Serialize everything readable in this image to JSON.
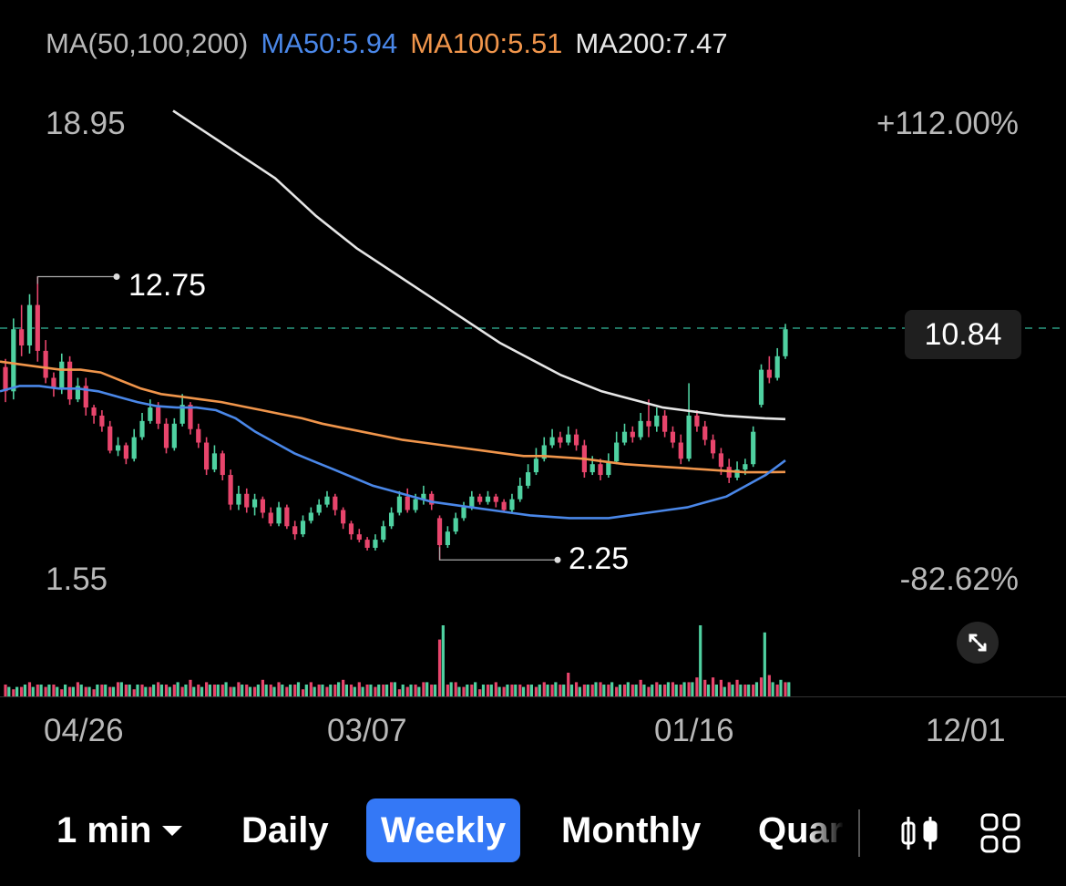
{
  "legend": {
    "title": "MA(50,100,200)",
    "ma50": "MA50:5.94",
    "ma100": "MA100:5.51",
    "ma200": "MA200:7.47"
  },
  "colors": {
    "ma50": "#4a87e8",
    "ma100": "#f0954b",
    "ma200": "#e6e6e6",
    "up": "#4fd1a1",
    "down": "#e8456c",
    "selected_tab": "#3478f6",
    "price_line": "#2a9a82"
  },
  "axis": {
    "max_price": "18.95",
    "min_price": "1.55",
    "max_pct": "+112.00%",
    "min_pct": "-82.62%",
    "x_ticks": [
      "04/26",
      "03/07",
      "01/16",
      "12/01"
    ]
  },
  "current_price": "10.84",
  "annotations": {
    "high": "12.75",
    "low": "2.25"
  },
  "chart_data": {
    "type": "candlestick",
    "interval": "Weekly",
    "ylim": [
      1.55,
      18.95
    ],
    "last_price": 10.84,
    "high_label": 12.75,
    "low_label": 2.25,
    "ma_last": {
      "MA50": 5.94,
      "MA100": 5.51,
      "MA200": 7.47
    },
    "ma200": [
      18.9,
      18.4,
      17.9,
      17.4,
      16.9,
      16.4,
      15.7,
      15.0,
      14.4,
      13.8,
      13.3,
      12.8,
      12.3,
      11.8,
      11.3,
      10.8,
      10.3,
      9.9,
      9.5,
      9.1,
      8.8,
      8.5,
      8.3,
      8.1,
      7.9,
      7.8,
      7.7,
      7.6,
      7.55,
      7.5,
      7.47
    ],
    "ma100": [
      9.6,
      9.5,
      9.4,
      9.3,
      9.3,
      9.2,
      8.9,
      8.6,
      8.4,
      8.3,
      8.2,
      8.1,
      7.95,
      7.8,
      7.65,
      7.5,
      7.3,
      7.15,
      7.0,
      6.85,
      6.7,
      6.6,
      6.5,
      6.4,
      6.3,
      6.2,
      6.1,
      6.1,
      6.05,
      6.0,
      5.9,
      5.8,
      5.75,
      5.7,
      5.65,
      5.6,
      5.55,
      5.5,
      5.5,
      5.51
    ],
    "ma50": [
      8.5,
      8.7,
      8.7,
      8.6,
      8.6,
      8.5,
      8.3,
      8.1,
      7.95,
      7.9,
      7.9,
      7.8,
      7.5,
      7.0,
      6.6,
      6.2,
      5.9,
      5.6,
      5.3,
      5.0,
      4.8,
      4.6,
      4.4,
      4.3,
      4.2,
      4.1,
      4.0,
      3.9,
      3.85,
      3.8,
      3.8,
      3.8,
      3.9,
      4.0,
      4.1,
      4.2,
      4.4,
      4.6,
      5.0,
      5.4,
      5.94
    ],
    "candles": [
      [
        9.4,
        8.5,
        9.7,
        8.1
      ],
      [
        8.5,
        10.8,
        11.2,
        8.2
      ],
      [
        10.8,
        10.2,
        11.7,
        9.8
      ],
      [
        10.2,
        11.7,
        12.1,
        9.9
      ],
      [
        11.7,
        10.0,
        12.75,
        9.6
      ],
      [
        10.0,
        9.0,
        10.4,
        8.8
      ],
      [
        9.0,
        8.6,
        9.2,
        8.3
      ],
      [
        8.6,
        9.6,
        9.9,
        8.4
      ],
      [
        9.6,
        8.2,
        9.8,
        8.0
      ],
      [
        8.2,
        8.7,
        9.0,
        8.1
      ],
      [
        8.7,
        7.9,
        9.0,
        7.6
      ],
      [
        7.9,
        7.6,
        8.0,
        7.3
      ],
      [
        7.6,
        7.2,
        7.8,
        7.0
      ],
      [
        7.2,
        6.3,
        7.4,
        6.2
      ],
      [
        6.3,
        6.5,
        6.8,
        6.1
      ],
      [
        6.5,
        6.0,
        6.6,
        5.8
      ],
      [
        6.0,
        6.8,
        7.1,
        5.9
      ],
      [
        6.8,
        7.4,
        7.7,
        6.7
      ],
      [
        7.4,
        7.9,
        8.2,
        7.3
      ],
      [
        7.9,
        7.3,
        8.1,
        7.1
      ],
      [
        7.3,
        6.4,
        7.5,
        6.2
      ],
      [
        6.4,
        7.3,
        7.5,
        6.3
      ],
      [
        7.3,
        8.0,
        8.4,
        7.2
      ],
      [
        8.0,
        7.1,
        8.1,
        6.9
      ],
      [
        7.1,
        6.6,
        7.3,
        6.4
      ],
      [
        6.6,
        5.6,
        6.8,
        5.4
      ],
      [
        5.6,
        6.2,
        6.5,
        5.5
      ],
      [
        6.2,
        5.4,
        6.3,
        5.2
      ],
      [
        5.4,
        4.3,
        5.6,
        4.1
      ],
      [
        4.3,
        4.7,
        5.0,
        4.1
      ],
      [
        4.7,
        4.2,
        4.9,
        4.0
      ],
      [
        4.2,
        4.5,
        4.7,
        3.9
      ],
      [
        4.5,
        4.0,
        4.6,
        3.8
      ],
      [
        4.0,
        3.6,
        4.2,
        3.5
      ],
      [
        3.6,
        4.2,
        4.4,
        3.5
      ],
      [
        4.2,
        3.5,
        4.3,
        3.4
      ],
      [
        3.5,
        3.2,
        3.7,
        3.0
      ],
      [
        3.2,
        3.7,
        3.9,
        3.1
      ],
      [
        3.7,
        4.0,
        4.2,
        3.6
      ],
      [
        4.0,
        4.3,
        4.5,
        3.9
      ],
      [
        4.3,
        4.6,
        4.8,
        4.2
      ],
      [
        4.6,
        4.1,
        4.7,
        3.9
      ],
      [
        4.1,
        3.6,
        4.2,
        3.4
      ],
      [
        3.6,
        3.2,
        3.7,
        3.0
      ],
      [
        3.2,
        3.0,
        3.4,
        2.9
      ],
      [
        3.0,
        2.7,
        3.1,
        2.6
      ],
      [
        2.7,
        3.0,
        3.2,
        2.6
      ],
      [
        3.0,
        3.5,
        3.7,
        2.9
      ],
      [
        3.5,
        4.0,
        4.2,
        3.4
      ],
      [
        4.0,
        4.6,
        4.8,
        3.9
      ],
      [
        4.6,
        4.1,
        4.9,
        4.0
      ],
      [
        4.1,
        4.5,
        4.7,
        4.0
      ],
      [
        4.5,
        4.7,
        5.0,
        4.3
      ],
      [
        4.7,
        4.3,
        4.8,
        4.1
      ],
      [
        3.8,
        2.8,
        3.9,
        2.25
      ],
      [
        2.8,
        3.3,
        3.5,
        2.7
      ],
      [
        3.3,
        3.8,
        4.0,
        3.2
      ],
      [
        3.8,
        4.2,
        4.4,
        3.7
      ],
      [
        4.2,
        4.6,
        4.8,
        4.1
      ],
      [
        4.6,
        4.4,
        4.7,
        4.3
      ],
      [
        4.4,
        4.6,
        4.8,
        4.3
      ],
      [
        4.6,
        4.4,
        4.7,
        4.2
      ],
      [
        4.4,
        4.1,
        4.5,
        4.0
      ],
      [
        4.1,
        4.5,
        4.7,
        4.0
      ],
      [
        4.5,
        5.0,
        5.3,
        4.4
      ],
      [
        5.0,
        5.5,
        5.8,
        4.9
      ],
      [
        5.5,
        6.0,
        6.4,
        5.4
      ],
      [
        6.0,
        6.5,
        6.8,
        5.9
      ],
      [
        6.5,
        6.8,
        7.1,
        6.4
      ],
      [
        6.8,
        6.6,
        7.0,
        6.4
      ],
      [
        6.6,
        6.9,
        7.2,
        6.5
      ],
      [
        6.9,
        6.5,
        7.1,
        6.3
      ],
      [
        6.5,
        5.5,
        6.7,
        5.3
      ],
      [
        5.5,
        5.8,
        6.1,
        5.4
      ],
      [
        5.8,
        5.4,
        6.0,
        5.2
      ],
      [
        5.4,
        5.9,
        6.2,
        5.3
      ],
      [
        5.9,
        6.6,
        7.0,
        5.8
      ],
      [
        6.6,
        7.0,
        7.3,
        6.5
      ],
      [
        7.0,
        6.8,
        7.2,
        6.6
      ],
      [
        6.8,
        7.4,
        7.7,
        6.7
      ],
      [
        7.4,
        7.2,
        8.2,
        6.8
      ],
      [
        7.2,
        7.6,
        7.9,
        7.0
      ],
      [
        7.6,
        7.0,
        7.8,
        6.8
      ],
      [
        7.0,
        6.6,
        7.2,
        6.4
      ],
      [
        6.6,
        6.0,
        6.9,
        5.8
      ],
      [
        6.0,
        7.6,
        8.8,
        5.9
      ],
      [
        7.6,
        7.2,
        7.8,
        7.0
      ],
      [
        7.2,
        6.7,
        7.4,
        6.5
      ],
      [
        6.7,
        6.2,
        6.9,
        6.0
      ],
      [
        6.2,
        5.7,
        6.4,
        5.4
      ],
      [
        5.7,
        5.3,
        6.0,
        5.1
      ],
      [
        5.3,
        5.6,
        5.9,
        5.2
      ],
      [
        5.6,
        5.8,
        6.0,
        5.4
      ],
      [
        5.8,
        7.0,
        7.2,
        5.7
      ],
      [
        8.0,
        9.3,
        9.5,
        7.9
      ],
      [
        9.3,
        9.0,
        9.8,
        8.8
      ],
      [
        9.0,
        9.8,
        10.1,
        8.9
      ],
      [
        9.8,
        10.8,
        11.0,
        9.7
      ]
    ],
    "volume_up": [
      4,
      4,
      5,
      4,
      5,
      5,
      4,
      5,
      4,
      5,
      4,
      5,
      5,
      4,
      6,
      5,
      5,
      4,
      5,
      5,
      4,
      6,
      5,
      4,
      4,
      5,
      5,
      6,
      4,
      5,
      4,
      5,
      5,
      4,
      5,
      5,
      6,
      5,
      4,
      5,
      5,
      6,
      5,
      4,
      4,
      5,
      5,
      5,
      6,
      5,
      5,
      4,
      6,
      5,
      30,
      6,
      4,
      5,
      6,
      5,
      5,
      4,
      5,
      5,
      4,
      5,
      5,
      5,
      6,
      5,
      5,
      4,
      5,
      6,
      5,
      6,
      5,
      6,
      5,
      5,
      5,
      5,
      6,
      5,
      6,
      6,
      30,
      5,
      5,
      4,
      5,
      5,
      5,
      6,
      27,
      6,
      7,
      6
    ],
    "volume_down": [
      5,
      3,
      4,
      6,
      5,
      4,
      5,
      3,
      4,
      6,
      4,
      3,
      5,
      4,
      6,
      5,
      3,
      5,
      4,
      6,
      5,
      5,
      4,
      7,
      5,
      6,
      5,
      5,
      4,
      6,
      5,
      4,
      7,
      5,
      6,
      4,
      5,
      3,
      6,
      5,
      4,
      5,
      7,
      5,
      6,
      5,
      4,
      5,
      6,
      3,
      4,
      5,
      6,
      5,
      24,
      5,
      6,
      4,
      5,
      3,
      5,
      6,
      4,
      5,
      5,
      5,
      4,
      6,
      5,
      5,
      10,
      6,
      5,
      5,
      6,
      5,
      4,
      5,
      5,
      7,
      4,
      6,
      5,
      6,
      5,
      6,
      8,
      7,
      8,
      7,
      6,
      7,
      5,
      5,
      8,
      9,
      5,
      6
    ]
  },
  "toolbar": {
    "interval": "1 min",
    "tabs": [
      "Daily",
      "Weekly",
      "Monthly",
      "Quar"
    ],
    "selected": "Weekly"
  }
}
